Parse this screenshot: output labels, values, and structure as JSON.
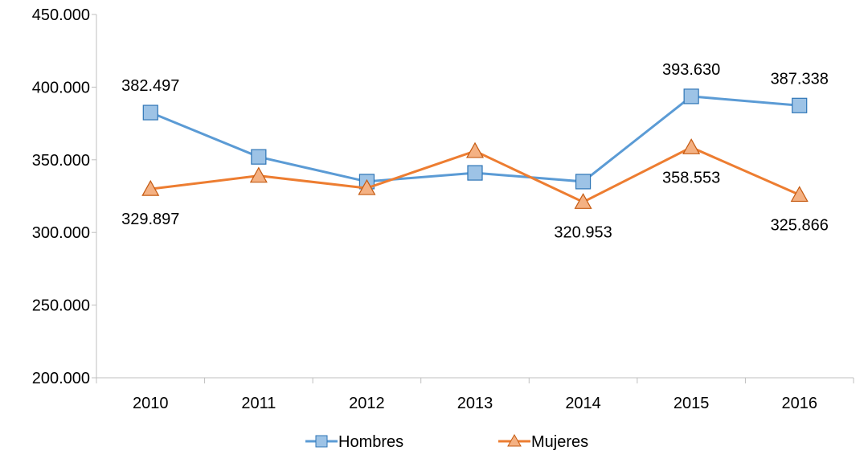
{
  "chart_data": {
    "type": "line",
    "categories": [
      "2010",
      "2011",
      "2012",
      "2013",
      "2014",
      "2015",
      "2016"
    ],
    "ylim": [
      200000,
      450000
    ],
    "yticks": [
      200000,
      250000,
      300000,
      350000,
      400000,
      450000
    ],
    "ytick_labels": [
      "200.000",
      "250.000",
      "300.000",
      "350.000",
      "400.000",
      "450.000"
    ],
    "grid": false,
    "legend_position": "bottom",
    "series": [
      {
        "name": "Hombres",
        "color": "#5b9bd5",
        "marker_fill": "#9dc3e6",
        "marker_stroke": "#2e75b6",
        "marker": "square",
        "values": [
          382497,
          352000,
          335000,
          341000,
          335000,
          393630,
          387338
        ],
        "labels": [
          "382.497",
          "",
          "",
          "",
          "",
          "393.630",
          "387.338"
        ],
        "label_side": [
          "above",
          "",
          "",
          "",
          "",
          "above",
          "above"
        ]
      },
      {
        "name": "Mujeres",
        "color": "#ed7d31",
        "marker_fill": "#f4b183",
        "marker_stroke": "#c55a11",
        "marker": "triangle",
        "values": [
          329897,
          339000,
          330500,
          356000,
          320953,
          358553,
          325866
        ],
        "labels": [
          "329.897",
          "",
          "",
          "",
          "320.953",
          "358.553",
          "325.866"
        ],
        "label_side": [
          "below",
          "",
          "",
          "",
          "below",
          "below",
          "below"
        ]
      }
    ]
  }
}
